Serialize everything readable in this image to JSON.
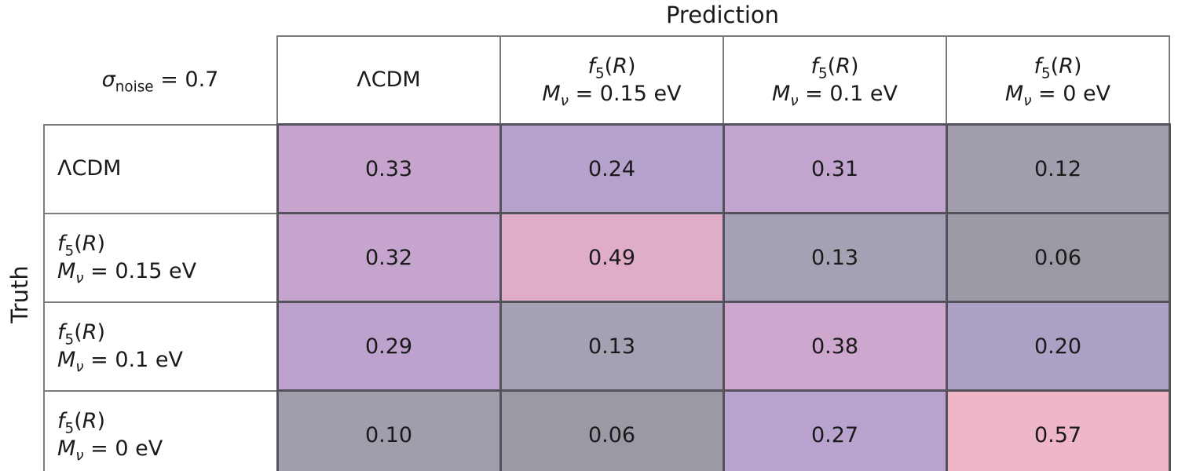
{
  "chart_data": {
    "type": "heatmap",
    "title": "Prediction",
    "row_axis_label": "Truth",
    "corner_text": "σ_noise = 0.7",
    "columns": [
      "ΛCDM",
      "f5(R) Mν = 0.15 eV",
      "f5(R) Mν = 0.1 eV",
      "f5(R) Mν = 0 eV"
    ],
    "rows": [
      "ΛCDM",
      "f5(R) Mν = 0.15 eV",
      "f5(R) Mν = 0.1 eV",
      "f5(R) Mν = 0 eV"
    ],
    "values": [
      [
        0.33,
        0.24,
        0.31,
        0.12
      ],
      [
        0.32,
        0.49,
        0.13,
        0.06
      ],
      [
        0.29,
        0.13,
        0.38,
        0.2
      ],
      [
        0.1,
        0.06,
        0.27,
        0.57
      ]
    ],
    "value_decimals": 2,
    "cell_colors": [
      [
        "#c6a4ce",
        "#b4a2cd",
        "#c2a4ce",
        "#a19dac"
      ],
      [
        "#c5a5ce",
        "#dfadc8",
        "#a5a0b3",
        "#9c99a4"
      ],
      [
        "#bda2cd",
        "#a5a0b3",
        "#cda7cd",
        "#aca0c4"
      ],
      [
        "#a19eac",
        "#9c99a4",
        "#b8a3cf",
        "#efb6c7"
      ]
    ],
    "legend_position": "none",
    "grid": "on",
    "text_color": "#1a1a1a",
    "header_border_color": "#7c7c7c",
    "cell_border_color": "#56525c"
  },
  "table": {
    "corner": [
      {
        "t": "σ",
        "i": true
      },
      {
        "t": "noise",
        "s": true
      },
      {
        "t": " = 0.7"
      }
    ],
    "col_headers": [
      {
        "lines": [
          [
            {
              "t": "ΛCDM"
            }
          ]
        ]
      },
      {
        "lines": [
          [
            {
              "t": "f",
              "i": true
            },
            {
              "t": "5",
              "s": true
            },
            {
              "t": "("
            },
            {
              "t": "R",
              "i": true
            },
            {
              "t": ")"
            }
          ],
          [
            {
              "t": "M",
              "i": true
            },
            {
              "t": "ν",
              "s": true,
              "i": true
            },
            {
              "t": " = 0.15 eV"
            }
          ]
        ]
      },
      {
        "lines": [
          [
            {
              "t": "f",
              "i": true
            },
            {
              "t": "5",
              "s": true
            },
            {
              "t": "("
            },
            {
              "t": "R",
              "i": true
            },
            {
              "t": ")"
            }
          ],
          [
            {
              "t": "M",
              "i": true
            },
            {
              "t": "ν",
              "s": true,
              "i": true
            },
            {
              "t": " = 0.1 eV"
            }
          ]
        ]
      },
      {
        "lines": [
          [
            {
              "t": "f",
              "i": true
            },
            {
              "t": "5",
              "s": true
            },
            {
              "t": "("
            },
            {
              "t": "R",
              "i": true
            },
            {
              "t": ")"
            }
          ],
          [
            {
              "t": "M",
              "i": true
            },
            {
              "t": "ν",
              "s": true,
              "i": true
            },
            {
              "t": " = 0 eV"
            }
          ]
        ]
      }
    ],
    "row_headers": [
      {
        "lines": [
          [
            {
              "t": "ΛCDM"
            }
          ]
        ]
      },
      {
        "lines": [
          [
            {
              "t": "f",
              "i": true
            },
            {
              "t": "5",
              "s": true
            },
            {
              "t": "("
            },
            {
              "t": "R",
              "i": true
            },
            {
              "t": ")"
            }
          ],
          [
            {
              "t": "M",
              "i": true
            },
            {
              "t": "ν",
              "s": true,
              "i": true
            },
            {
              "t": " = 0.15 eV"
            }
          ]
        ]
      },
      {
        "lines": [
          [
            {
              "t": "f",
              "i": true
            },
            {
              "t": "5",
              "s": true
            },
            {
              "t": "("
            },
            {
              "t": "R",
              "i": true
            },
            {
              "t": ")"
            }
          ],
          [
            {
              "t": "M",
              "i": true
            },
            {
              "t": "ν",
              "s": true,
              "i": true
            },
            {
              "t": " = 0.1 eV"
            }
          ]
        ]
      },
      {
        "lines": [
          [
            {
              "t": "f",
              "i": true
            },
            {
              "t": "5",
              "s": true
            },
            {
              "t": "("
            },
            {
              "t": "R",
              "i": true
            },
            {
              "t": ")"
            }
          ],
          [
            {
              "t": "M",
              "i": true
            },
            {
              "t": "ν",
              "s": true,
              "i": true
            },
            {
              "t": " = 0 eV"
            }
          ]
        ]
      }
    ]
  }
}
